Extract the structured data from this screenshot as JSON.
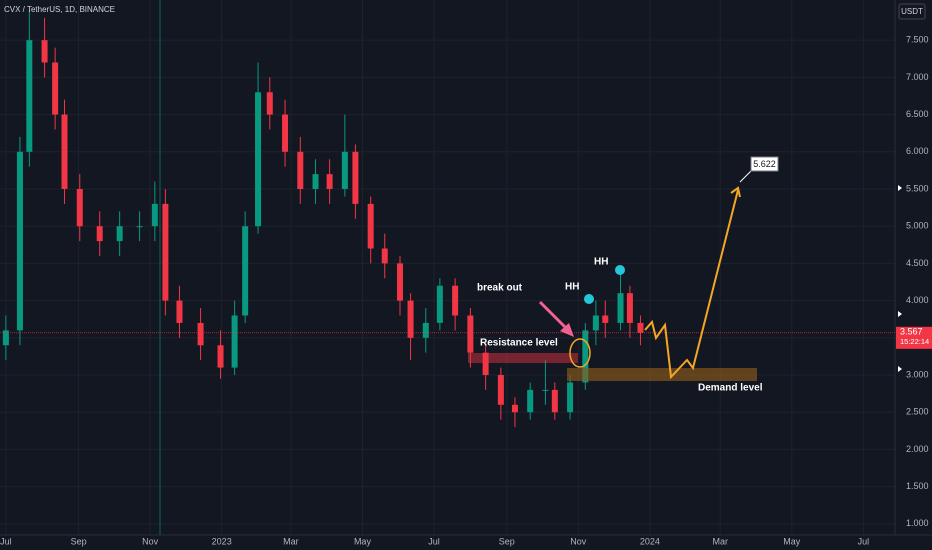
{
  "chart_data": {
    "type": "candlestick",
    "title": "CVX / TetherUS, 1D, BINANCE",
    "currency": "USDT",
    "up_color": "#089981",
    "down_color": "#f23645",
    "x": [
      0,
      12,
      20,
      33,
      42,
      50,
      63,
      80,
      97,
      114,
      127,
      136,
      148,
      166,
      183,
      195,
      204,
      215,
      225,
      238,
      251,
      264,
      276,
      289,
      298,
      311,
      323,
      336,
      345,
      358,
      370,
      383,
      396,
      409,
      422,
      434,
      447,
      460,
      468,
      481,
      494,
      503,
      511,
      524,
      532,
      541
    ],
    "open": [
      3.4,
      3.6,
      6.0,
      7.5,
      7.2,
      6.5,
      5.5,
      5.0,
      4.8,
      5.0,
      5.0,
      5.3,
      4.0,
      3.7,
      3.4,
      3.1,
      3.8,
      5.0,
      6.8,
      6.5,
      6.0,
      5.5,
      5.7,
      5.5,
      6.0,
      5.3,
      4.7,
      4.5,
      4.0,
      3.5,
      3.7,
      4.2,
      3.8,
      3.3,
      3.0,
      2.6,
      2.5,
      2.8,
      2.8,
      2.5,
      2.9,
      3.6,
      3.8,
      3.7,
      4.1,
      3.7
    ],
    "high": [
      3.8,
      6.2,
      7.9,
      7.8,
      7.4,
      6.7,
      5.7,
      5.2,
      5.2,
      5.2,
      5.6,
      5.5,
      4.2,
      3.9,
      3.6,
      4.0,
      5.2,
      7.2,
      7.0,
      6.7,
      6.2,
      5.9,
      5.9,
      6.5,
      6.1,
      5.4,
      4.9,
      4.6,
      4.1,
      3.9,
      4.3,
      4.3,
      3.9,
      3.4,
      3.1,
      2.7,
      2.9,
      3.2,
      2.9,
      3.0,
      3.7,
      4.0,
      4.0,
      4.4,
      4.2,
      3.8
    ],
    "low": [
      3.2,
      3.4,
      5.8,
      7.0,
      6.3,
      5.3,
      4.8,
      4.6,
      4.6,
      4.8,
      4.8,
      3.8,
      3.5,
      3.2,
      2.95,
      3.0,
      3.7,
      4.9,
      6.3,
      5.8,
      5.3,
      5.3,
      5.3,
      5.4,
      5.1,
      4.5,
      4.3,
      3.8,
      3.2,
      3.3,
      3.6,
      3.6,
      3.1,
      2.8,
      2.4,
      2.3,
      2.4,
      2.6,
      2.4,
      2.4,
      2.8,
      3.4,
      3.5,
      3.6,
      3.5,
      3.4
    ],
    "close": [
      3.6,
      6.0,
      7.5,
      7.2,
      6.5,
      5.5,
      5.0,
      4.8,
      5.0,
      5.0,
      5.3,
      4.0,
      3.7,
      3.4,
      3.1,
      3.8,
      5.0,
      6.8,
      6.5,
      6.0,
      5.5,
      5.7,
      5.5,
      6.0,
      5.3,
      4.7,
      4.5,
      4.0,
      3.5,
      3.7,
      4.2,
      3.8,
      3.3,
      3.0,
      2.6,
      2.5,
      2.8,
      2.8,
      2.5,
      2.9,
      3.6,
      3.8,
      3.7,
      4.1,
      3.7,
      3.567
    ],
    "last_price": 3.567,
    "countdown": "15:22:14",
    "xlim": [
      -5,
      758
    ],
    "xticks": [
      {
        "value": 0,
        "label": "Jul"
      },
      {
        "value": 62,
        "label": "Sep"
      },
      {
        "value": 123,
        "label": "Nov"
      },
      {
        "value": 184,
        "label": "2023"
      },
      {
        "value": 243,
        "label": "Mar"
      },
      {
        "value": 304,
        "label": "May"
      },
      {
        "value": 365,
        "label": "Jul"
      },
      {
        "value": 427,
        "label": "Sep"
      },
      {
        "value": 488,
        "label": "Nov"
      },
      {
        "value": 549,
        "label": "2024"
      },
      {
        "value": 609,
        "label": "Mar"
      },
      {
        "value": 670,
        "label": "May"
      },
      {
        "value": 731,
        "label": "Jul"
      }
    ],
    "ylim": [
      0.85,
      8.04
    ],
    "yticks": [
      {
        "value": 1,
        "label": "1.000"
      },
      {
        "value": 1.5,
        "label": "1.500"
      },
      {
        "value": 2,
        "label": "2.000"
      },
      {
        "value": 2.5,
        "label": "2.500"
      },
      {
        "value": 3,
        "label": "3.000"
      },
      {
        "value": 3.5,
        "label": "3.500"
      },
      {
        "value": 4,
        "label": "4.000"
      },
      {
        "value": 4.5,
        "label": "4.500"
      },
      {
        "value": 5,
        "label": "5.000"
      },
      {
        "value": 5.5,
        "label": "5.500"
      },
      {
        "value": 6,
        "label": "6.000"
      },
      {
        "value": 6.5,
        "label": "6.500"
      },
      {
        "value": 7,
        "label": "7.000"
      },
      {
        "value": 7.5,
        "label": "7.500"
      }
    ],
    "grid": true,
    "annotations": [
      "break out",
      "HH",
      "HH",
      "Resistance level",
      "Demand level",
      "5.622"
    ]
  }
}
